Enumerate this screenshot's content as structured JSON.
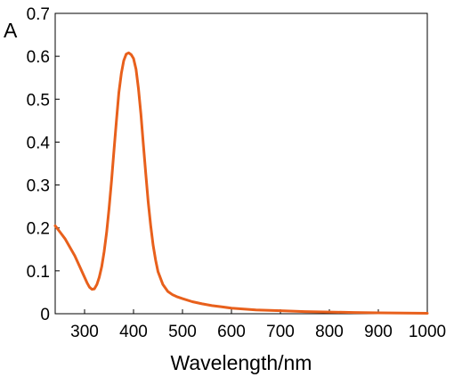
{
  "chart_data": {
    "type": "line",
    "xlabel": "Wavelength/nm",
    "ylabel": "A",
    "xlim": [
      240,
      1000
    ],
    "ylim": [
      0,
      0.7
    ],
    "xticks": [
      300,
      400,
      500,
      600,
      700,
      800,
      900,
      1000
    ],
    "yticks": [
      0,
      0.1,
      0.2,
      0.3,
      0.4,
      0.5,
      0.6,
      0.7
    ],
    "ytick_labels": [
      "0",
      "0.1",
      "0.2",
      "0.3",
      "0.4",
      "0.5",
      "0.6",
      "0.7"
    ],
    "grid": false,
    "legend": "none",
    "series": [
      {
        "color": "#e8601c",
        "x": [
          240,
          250,
          260,
          270,
          280,
          290,
          300,
          305,
          310,
          315,
          320,
          325,
          330,
          335,
          340,
          345,
          350,
          355,
          360,
          365,
          370,
          375,
          380,
          385,
          390,
          395,
          400,
          405,
          410,
          415,
          420,
          425,
          430,
          435,
          440,
          445,
          450,
          460,
          470,
          480,
          490,
          500,
          520,
          540,
          560,
          580,
          600,
          650,
          700,
          750,
          800,
          850,
          900,
          950,
          1000
        ],
        "y": [
          0.205,
          0.19,
          0.175,
          0.155,
          0.135,
          0.11,
          0.085,
          0.072,
          0.062,
          0.057,
          0.058,
          0.068,
          0.085,
          0.11,
          0.145,
          0.19,
          0.245,
          0.31,
          0.38,
          0.45,
          0.515,
          0.56,
          0.59,
          0.605,
          0.608,
          0.604,
          0.595,
          0.57,
          0.525,
          0.465,
          0.395,
          0.325,
          0.26,
          0.205,
          0.16,
          0.125,
          0.098,
          0.068,
          0.052,
          0.044,
          0.039,
          0.035,
          0.028,
          0.023,
          0.019,
          0.016,
          0.013,
          0.009,
          0.007,
          0.005,
          0.004,
          0.003,
          0.002,
          0.0015,
          0.001
        ]
      }
    ]
  }
}
